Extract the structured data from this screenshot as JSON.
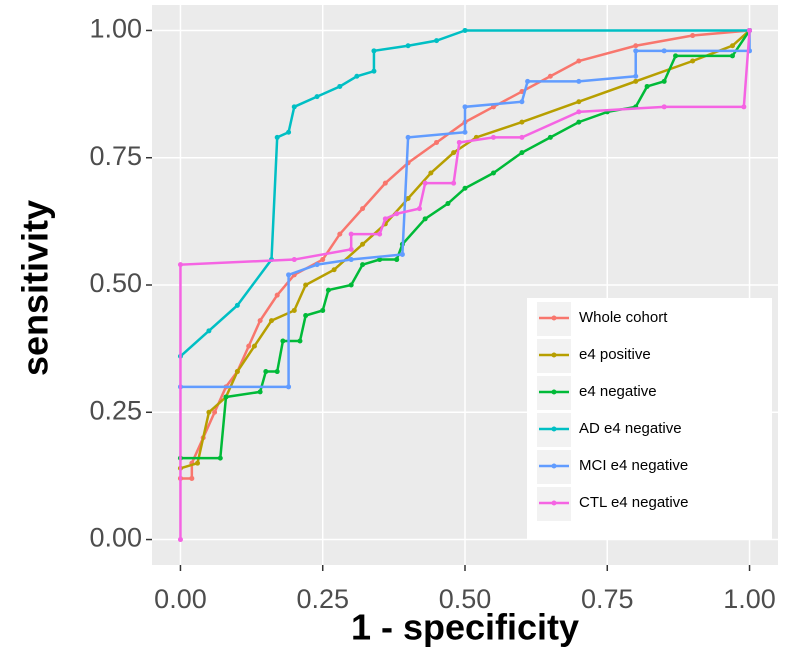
{
  "chart_data": {
    "type": "line",
    "x_label": "1 - specificity",
    "y_label": "sensitivity",
    "xlim": [
      -0.05,
      1.05
    ],
    "ylim": [
      -0.05,
      1.05
    ],
    "xticks": [
      {
        "value": 0,
        "label": "0.00"
      },
      {
        "value": 0.25,
        "label": "0.25"
      },
      {
        "value": 0.5,
        "label": "0.50"
      },
      {
        "value": 0.75,
        "label": "0.75"
      },
      {
        "value": 1,
        "label": "1.00"
      }
    ],
    "yticks": [
      {
        "value": 0,
        "label": "0.00"
      },
      {
        "value": 0.25,
        "label": "0.25"
      },
      {
        "value": 0.5,
        "label": "0.50"
      },
      {
        "value": 0.75,
        "label": "0.75"
      },
      {
        "value": 1,
        "label": "1.00"
      }
    ],
    "grid": true,
    "legend_position": "bottom-right",
    "series": [
      {
        "name": "Whole cohort",
        "color": "#F8766D",
        "x": [
          0,
          0.02,
          0.02,
          0.04,
          0.06,
          0.08,
          0.1,
          0.12,
          0.14,
          0.17,
          0.2,
          0.25,
          0.28,
          0.32,
          0.36,
          0.4,
          0.45,
          0.5,
          0.55,
          0.6,
          0.65,
          0.7,
          0.8,
          0.9,
          1
        ],
        "values": [
          0.12,
          0.12,
          0.15,
          0.2,
          0.25,
          0.3,
          0.33,
          0.38,
          0.43,
          0.48,
          0.52,
          0.55,
          0.6,
          0.65,
          0.7,
          0.74,
          0.78,
          0.82,
          0.85,
          0.88,
          0.91,
          0.94,
          0.97,
          0.99,
          1
        ]
      },
      {
        "name": "e4 positive",
        "color": "#B79F00",
        "x": [
          0,
          0.03,
          0.05,
          0.08,
          0.1,
          0.13,
          0.16,
          0.2,
          0.22,
          0.27,
          0.32,
          0.36,
          0.4,
          0.44,
          0.48,
          0.52,
          0.6,
          0.7,
          0.8,
          0.9,
          0.97,
          1
        ],
        "values": [
          0.14,
          0.15,
          0.25,
          0.28,
          0.33,
          0.38,
          0.43,
          0.45,
          0.5,
          0.53,
          0.58,
          0.62,
          0.67,
          0.72,
          0.76,
          0.79,
          0.82,
          0.86,
          0.9,
          0.94,
          0.97,
          1
        ]
      },
      {
        "name": "e4 negative",
        "color": "#00BA38",
        "x": [
          0,
          0.07,
          0.08,
          0.14,
          0.15,
          0.17,
          0.18,
          0.21,
          0.22,
          0.25,
          0.26,
          0.3,
          0.32,
          0.35,
          0.38,
          0.39,
          0.43,
          0.47,
          0.5,
          0.55,
          0.6,
          0.65,
          0.7,
          0.75,
          0.8,
          0.82,
          0.85,
          0.87,
          0.97,
          1
        ],
        "values": [
          0.16,
          0.16,
          0.28,
          0.29,
          0.33,
          0.33,
          0.39,
          0.39,
          0.44,
          0.45,
          0.49,
          0.5,
          0.54,
          0.55,
          0.55,
          0.58,
          0.63,
          0.66,
          0.69,
          0.72,
          0.76,
          0.79,
          0.82,
          0.84,
          0.85,
          0.89,
          0.9,
          0.95,
          0.95,
          1
        ]
      },
      {
        "name": "AD e4 negative",
        "color": "#00BFC4",
        "x": [
          0,
          0.05,
          0.1,
          0.16,
          0.17,
          0.19,
          0.2,
          0.24,
          0.28,
          0.31,
          0.34,
          0.34,
          0.4,
          0.45,
          0.5,
          1
        ],
        "values": [
          0.36,
          0.41,
          0.46,
          0.55,
          0.79,
          0.8,
          0.85,
          0.87,
          0.89,
          0.91,
          0.92,
          0.96,
          0.97,
          0.98,
          1,
          1
        ]
      },
      {
        "name": "MCI e4 negative",
        "color": "#619CFF",
        "x": [
          0,
          0.19,
          0.19,
          0.24,
          0.3,
          0.39,
          0.4,
          0.5,
          0.5,
          0.6,
          0.61,
          0.7,
          0.8,
          0.8,
          0.85,
          1,
          1
        ],
        "values": [
          0.3,
          0.3,
          0.52,
          0.54,
          0.55,
          0.56,
          0.79,
          0.8,
          0.85,
          0.86,
          0.9,
          0.9,
          0.91,
          0.96,
          0.96,
          0.96,
          1
        ]
      },
      {
        "name": "CTL e4 negative",
        "color": "#F564E3",
        "x": [
          0,
          0,
          0.2,
          0.3,
          0.3,
          0.35,
          0.36,
          0.38,
          0.42,
          0.43,
          0.48,
          0.49,
          0.55,
          0.6,
          0.7,
          0.85,
          0.99,
          1
        ],
        "values": [
          0,
          0.54,
          0.55,
          0.57,
          0.6,
          0.6,
          0.63,
          0.64,
          0.65,
          0.7,
          0.7,
          0.78,
          0.79,
          0.79,
          0.84,
          0.85,
          0.85,
          1
        ]
      }
    ]
  }
}
